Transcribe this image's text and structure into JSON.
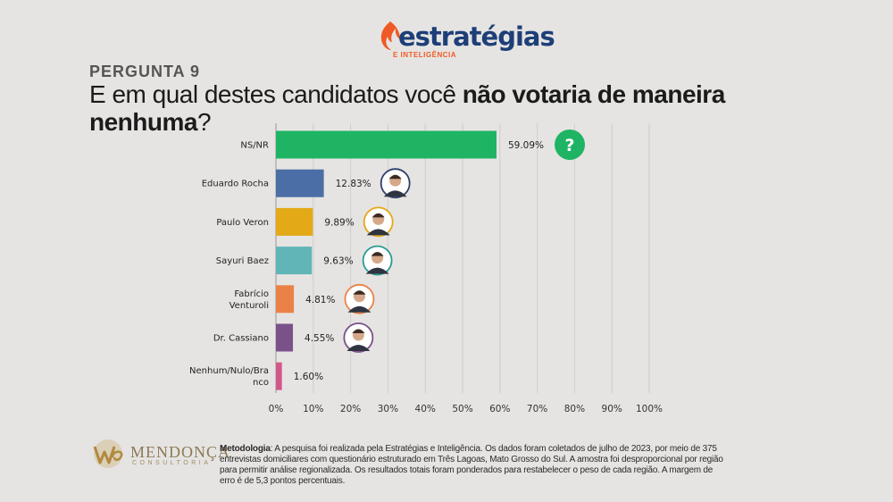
{
  "brand": {
    "name_main": "estratégias",
    "name_sub": "E INTELIGÊNCIA"
  },
  "question": {
    "number": "PERGUNTA 9",
    "text_lead": "E em qual destes candidatos você ",
    "text_bold": "não votaria de maneira nenhuma",
    "text_end": "?"
  },
  "footer": {
    "logo_name": "MENDONÇA",
    "logo_tag": "CONSULTORIA",
    "method_label": "Metodologia",
    "method_text": ": A pesquisa foi realizada pela Estratégias e Inteligência. Os dados foram coletados de julho de 2023, por meio de 375 entrevistas domiciliares com questionário estruturado em Três Lagoas, Mato Grosso do Sul. A amostra foi desproporcional por região para permitir análise regionalizada. Os resultados totais foram ponderados para restabelecer o peso de cada região. A margem de erro é de 5,3 pontos percentuais."
  },
  "chart_data": {
    "type": "bar",
    "orientation": "horizontal",
    "categories": [
      "NS/NR",
      "Eduardo Rocha",
      "Paulo Veron",
      "Sayuri Baez",
      "Fabrício Venturoli",
      "Dr. Cassiano",
      "Nenhum/Nulo/Branco"
    ],
    "category_lines": [
      [
        "NS/NR"
      ],
      [
        "Eduardo Rocha"
      ],
      [
        "Paulo Veron"
      ],
      [
        "Sayuri Baez"
      ],
      [
        "Fabrício",
        "Venturoli"
      ],
      [
        "Dr. Cassiano"
      ],
      [
        "Nenhum/Nulo/Bra",
        "nco"
      ]
    ],
    "values": [
      59.09,
      12.83,
      9.89,
      9.63,
      4.81,
      4.55,
      1.6
    ],
    "value_labels": [
      "59.09%",
      "12.83%",
      "9.89%",
      "9.63%",
      "4.81%",
      "4.55%",
      "1.60%"
    ],
    "colors": [
      "#1fb464",
      "#4a6ea5",
      "#e3a917",
      "#62b5b7",
      "#ea8248",
      "#7a5189",
      "#d2578a"
    ],
    "ring_colors": [
      "#1fb464",
      "#2f3e6b",
      "#e3a917",
      "#2a9c92",
      "#ea8248",
      "#7a5189",
      null
    ],
    "icons": [
      "question-icon",
      "avatar-eduardo-rocha",
      "avatar-paulo-veron",
      "avatar-sayuri-baez",
      "avatar-fabricio-venturoli",
      "avatar-dr-cassiano",
      null
    ],
    "xlim": [
      0,
      100
    ],
    "xticks": [
      "0%",
      "10%",
      "20%",
      "30%",
      "40%",
      "50%",
      "60%",
      "70%",
      "80%",
      "90%",
      "100%"
    ],
    "question_mark": "?",
    "grid": true,
    "legend": "none"
  }
}
